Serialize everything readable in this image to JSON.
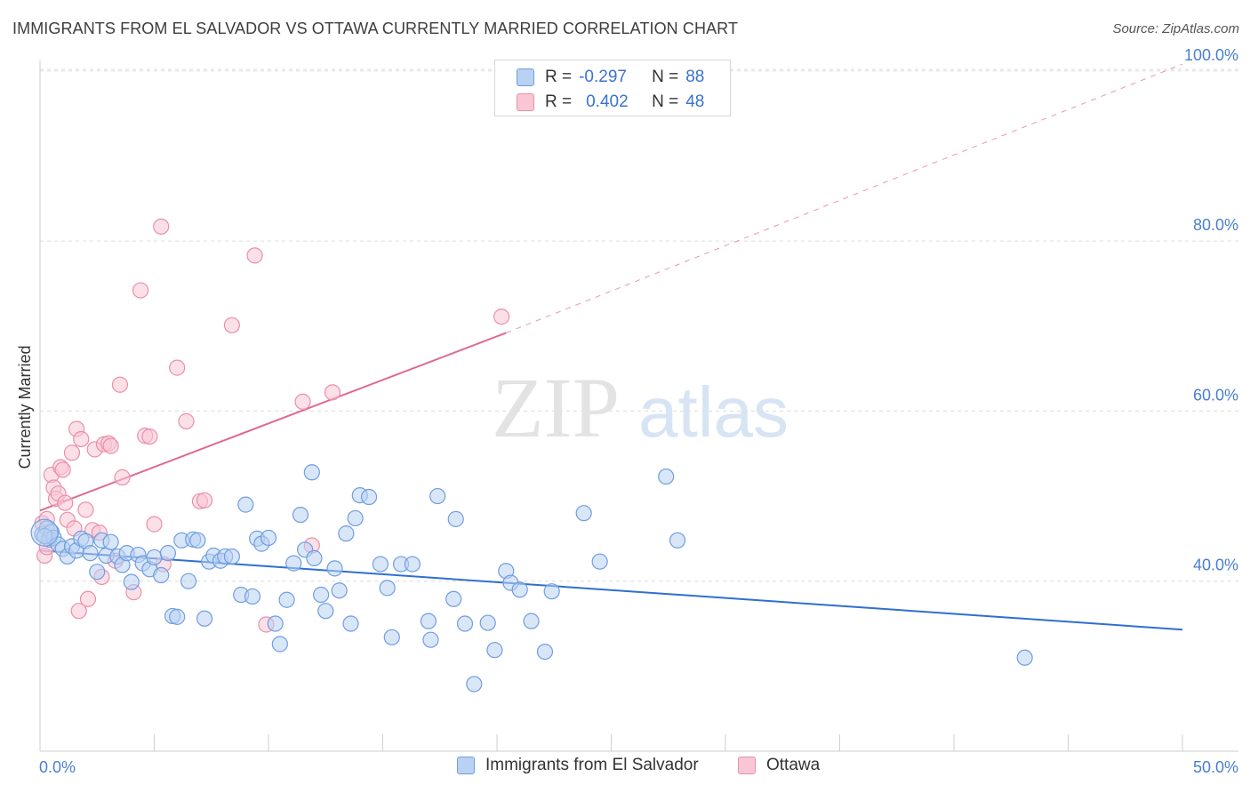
{
  "title": "IMMIGRANTS FROM EL SALVADOR VS OTTAWA CURRENTLY MARRIED CORRELATION CHART",
  "source": "Source: ZipAtlas.com",
  "watermark": {
    "zip": "ZIP",
    "atlas": "atlas"
  },
  "colors": {
    "blue_fill": "#b9d1f2",
    "blue_stroke": "#6f9ee0",
    "blue_line": "#2f6fd1",
    "pink_fill": "#f8c6d5",
    "pink_stroke": "#ea8fab",
    "pink_line": "#e06a92",
    "axis_text": "#4a7fd1",
    "grid": "#dcdcdc"
  },
  "legend_top": {
    "rows": [
      {
        "r_label": "R =",
        "r_value": "-0.297",
        "n_label": "N =",
        "n_value": "88",
        "series": "blue"
      },
      {
        "r_label": "R =",
        "r_value": "0.402",
        "n_label": "N =",
        "n_value": "48",
        "series": "pink"
      }
    ]
  },
  "legend_bottom": [
    {
      "label": "Immigrants from El Salvador",
      "series": "blue"
    },
    {
      "label": "Ottawa",
      "series": "pink"
    }
  ],
  "chart_data": {
    "type": "scatter",
    "title": "IMMIGRANTS FROM EL SALVADOR VS OTTAWA CURRENTLY MARRIED CORRELATION CHART",
    "xlabel": "",
    "ylabel": "Currently Married",
    "xlim": [
      0,
      50
    ],
    "ylim": [
      20,
      102
    ],
    "x_tick_labels": [
      "0.0%",
      "50.0%"
    ],
    "y_ticks": [
      40,
      60,
      80,
      100
    ],
    "y_tick_labels": [
      "40.0%",
      "60.0%",
      "80.0%",
      "100.0%"
    ],
    "grid": true,
    "legend_position": "top-center",
    "series": [
      {
        "name": "Immigrants from El Salvador",
        "color": "blue",
        "R": -0.297,
        "N": 88,
        "trend": {
          "x": [
            0,
            50
          ],
          "y": [
            43.6,
            34.3
          ],
          "style": "solid"
        },
        "points": [
          [
            0.1,
            45.5
          ],
          [
            0.3,
            46.2
          ],
          [
            0.4,
            44.9
          ],
          [
            0.5,
            45.8
          ],
          [
            0.6,
            45.1
          ],
          [
            0.8,
            44.3
          ],
          [
            1.0,
            43.8
          ],
          [
            1.2,
            42.9
          ],
          [
            1.4,
            44.1
          ],
          [
            1.6,
            43.6
          ],
          [
            1.8,
            45.0
          ],
          [
            2.0,
            44.7
          ],
          [
            2.2,
            43.3
          ],
          [
            2.5,
            41.1
          ],
          [
            2.7,
            44.8
          ],
          [
            2.9,
            43.0
          ],
          [
            3.1,
            44.6
          ],
          [
            3.4,
            42.9
          ],
          [
            3.6,
            41.9
          ],
          [
            3.8,
            43.3
          ],
          [
            4.0,
            39.9
          ],
          [
            4.3,
            43.1
          ],
          [
            4.5,
            42.1
          ],
          [
            4.8,
            41.4
          ],
          [
            5.0,
            42.8
          ],
          [
            5.3,
            40.7
          ],
          [
            5.6,
            43.3
          ],
          [
            5.8,
            35.9
          ],
          [
            6.0,
            35.8
          ],
          [
            6.2,
            44.8
          ],
          [
            6.5,
            40.0
          ],
          [
            6.7,
            44.9
          ],
          [
            6.9,
            44.8
          ],
          [
            7.2,
            35.6
          ],
          [
            7.4,
            42.3
          ],
          [
            7.6,
            43.0
          ],
          [
            7.9,
            42.4
          ],
          [
            8.1,
            42.9
          ],
          [
            8.4,
            42.9
          ],
          [
            8.8,
            38.4
          ],
          [
            9.0,
            49.0
          ],
          [
            9.3,
            38.2
          ],
          [
            9.5,
            45.0
          ],
          [
            9.7,
            44.4
          ],
          [
            10.0,
            45.1
          ],
          [
            10.3,
            35.0
          ],
          [
            10.5,
            32.6
          ],
          [
            10.8,
            37.8
          ],
          [
            11.1,
            42.1
          ],
          [
            11.4,
            47.8
          ],
          [
            11.6,
            43.7
          ],
          [
            11.9,
            52.8
          ],
          [
            12.0,
            42.7
          ],
          [
            12.3,
            38.4
          ],
          [
            12.5,
            36.5
          ],
          [
            12.9,
            41.5
          ],
          [
            13.1,
            38.9
          ],
          [
            13.4,
            45.6
          ],
          [
            13.6,
            35.0
          ],
          [
            13.8,
            47.4
          ],
          [
            14.0,
            50.1
          ],
          [
            14.4,
            49.9
          ],
          [
            14.9,
            42.0
          ],
          [
            15.2,
            39.2
          ],
          [
            15.4,
            33.4
          ],
          [
            15.8,
            42.0
          ],
          [
            16.3,
            42.0
          ],
          [
            17.0,
            35.3
          ],
          [
            17.1,
            33.1
          ],
          [
            17.4,
            50.0
          ],
          [
            18.1,
            37.9
          ],
          [
            18.2,
            47.3
          ],
          [
            18.6,
            35.0
          ],
          [
            19.0,
            27.9
          ],
          [
            19.6,
            35.1
          ],
          [
            19.9,
            31.9
          ],
          [
            20.4,
            41.2
          ],
          [
            20.6,
            39.8
          ],
          [
            21.0,
            39.0
          ],
          [
            21.5,
            35.3
          ],
          [
            22.1,
            31.7
          ],
          [
            22.4,
            38.8
          ],
          [
            23.8,
            48.0
          ],
          [
            24.5,
            42.3
          ],
          [
            27.4,
            52.3
          ],
          [
            27.9,
            44.8
          ],
          [
            43.1,
            31.0
          ],
          [
            0.2,
            45.3
          ]
        ]
      },
      {
        "name": "Ottawa",
        "color": "pink",
        "R": 0.402,
        "N": 48,
        "trend": {
          "x": [
            0,
            20.4,
            50
          ],
          "y": [
            48.3,
            69.2,
            100.8
          ],
          "style": "solid-then-dashed"
        },
        "points": [
          [
            0.1,
            46.8
          ],
          [
            0.2,
            43.0
          ],
          [
            0.3,
            44.0
          ],
          [
            0.5,
            52.5
          ],
          [
            0.6,
            51.0
          ],
          [
            0.7,
            49.7
          ],
          [
            0.8,
            50.3
          ],
          [
            0.9,
            53.4
          ],
          [
            1.0,
            53.1
          ],
          [
            1.1,
            49.2
          ],
          [
            1.2,
            47.2
          ],
          [
            1.4,
            55.1
          ],
          [
            1.5,
            46.2
          ],
          [
            1.6,
            57.9
          ],
          [
            1.7,
            36.5
          ],
          [
            1.8,
            56.7
          ],
          [
            2.0,
            48.4
          ],
          [
            2.1,
            37.9
          ],
          [
            2.3,
            46.0
          ],
          [
            2.4,
            55.5
          ],
          [
            2.6,
            45.7
          ],
          [
            2.7,
            40.5
          ],
          [
            2.8,
            56.1
          ],
          [
            3.0,
            56.2
          ],
          [
            3.1,
            55.9
          ],
          [
            3.3,
            42.4
          ],
          [
            3.5,
            63.1
          ],
          [
            3.6,
            52.2
          ],
          [
            4.1,
            38.7
          ],
          [
            4.4,
            74.2
          ],
          [
            4.6,
            57.1
          ],
          [
            4.8,
            57.0
          ],
          [
            5.0,
            46.7
          ],
          [
            5.3,
            81.7
          ],
          [
            5.4,
            42.0
          ],
          [
            6.0,
            65.1
          ],
          [
            6.4,
            58.8
          ],
          [
            7.0,
            49.4
          ],
          [
            7.2,
            49.5
          ],
          [
            8.4,
            70.1
          ],
          [
            9.4,
            78.3
          ],
          [
            9.9,
            34.9
          ],
          [
            11.5,
            61.1
          ],
          [
            11.9,
            44.2
          ],
          [
            12.8,
            62.2
          ],
          [
            20.2,
            71.1
          ],
          [
            0.4,
            45.1
          ],
          [
            0.3,
            47.3
          ]
        ]
      }
    ]
  }
}
